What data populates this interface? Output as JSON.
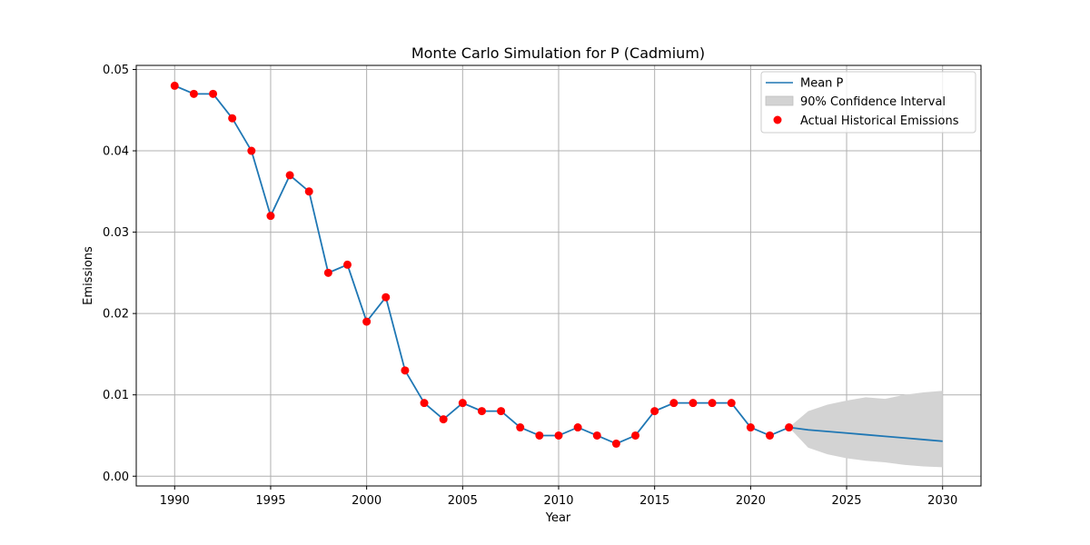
{
  "chart_data": {
    "type": "line",
    "title": "Monte Carlo Simulation for P (Cadmium)",
    "xlabel": "Year",
    "ylabel": "Emissions",
    "xlim": [
      1988,
      2032
    ],
    "ylim": [
      -0.0012,
      0.0505
    ],
    "xticks": [
      1990,
      1995,
      2000,
      2005,
      2010,
      2015,
      2020,
      2025,
      2030
    ],
    "yticks": [
      0.0,
      0.01,
      0.02,
      0.03,
      0.04,
      0.05
    ],
    "ytick_labels": [
      "0.00",
      "0.01",
      "0.02",
      "0.03",
      "0.04",
      "0.05"
    ],
    "grid": true,
    "legend_position": "top-right",
    "legend": {
      "mean_label": "Mean P",
      "ci_label": "90% Confidence Interval",
      "actual_label": "Actual Historical Emissions"
    },
    "colors": {
      "mean_line": "#1f77b4",
      "ci_fill": "#d3d3d3",
      "actual_points": "#ff0000",
      "grid": "#b0b0b0"
    },
    "series": [
      {
        "name": "Mean P",
        "x": [
          1990,
          1991,
          1992,
          1993,
          1994,
          1995,
          1996,
          1997,
          1998,
          1999,
          2000,
          2001,
          2002,
          2003,
          2004,
          2005,
          2006,
          2007,
          2008,
          2009,
          2010,
          2011,
          2012,
          2013,
          2014,
          2015,
          2016,
          2017,
          2018,
          2019,
          2020,
          2021,
          2022,
          2023,
          2024,
          2025,
          2026,
          2027,
          2028,
          2029,
          2030
        ],
        "y": [
          0.048,
          0.047,
          0.047,
          0.044,
          0.04,
          0.032,
          0.037,
          0.035,
          0.025,
          0.026,
          0.019,
          0.022,
          0.013,
          0.009,
          0.007,
          0.009,
          0.008,
          0.008,
          0.006,
          0.005,
          0.005,
          0.006,
          0.005,
          0.004,
          0.005,
          0.008,
          0.009,
          0.009,
          0.009,
          0.009,
          0.006,
          0.005,
          0.006,
          0.0057,
          0.0055,
          0.0053,
          0.0051,
          0.0049,
          0.0047,
          0.0045,
          0.0043
        ]
      },
      {
        "name": "90% Confidence Interval",
        "x": [
          2022,
          2023,
          2024,
          2025,
          2026,
          2027,
          2028,
          2029,
          2030
        ],
        "lower": [
          0.006,
          0.0035,
          0.0027,
          0.0022,
          0.0019,
          0.0017,
          0.0014,
          0.0012,
          0.0011
        ],
        "upper": [
          0.006,
          0.008,
          0.0088,
          0.0093,
          0.0097,
          0.0095,
          0.01,
          0.0103,
          0.0105
        ]
      },
      {
        "name": "Actual Historical Emissions",
        "x": [
          1990,
          1991,
          1992,
          1993,
          1994,
          1995,
          1996,
          1997,
          1998,
          1999,
          2000,
          2001,
          2002,
          2003,
          2004,
          2005,
          2006,
          2007,
          2008,
          2009,
          2010,
          2011,
          2012,
          2013,
          2014,
          2015,
          2016,
          2017,
          2018,
          2019,
          2020,
          2021,
          2022
        ],
        "y": [
          0.048,
          0.047,
          0.047,
          0.044,
          0.04,
          0.032,
          0.037,
          0.035,
          0.025,
          0.026,
          0.019,
          0.022,
          0.013,
          0.009,
          0.007,
          0.009,
          0.008,
          0.008,
          0.006,
          0.005,
          0.005,
          0.006,
          0.005,
          0.004,
          0.005,
          0.008,
          0.009,
          0.009,
          0.009,
          0.009,
          0.006,
          0.005,
          0.006
        ]
      }
    ]
  }
}
